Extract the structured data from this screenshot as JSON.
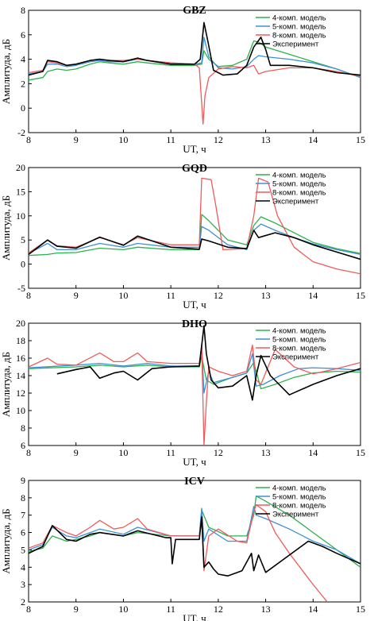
{
  "colors": {
    "m4": "#2bb24c",
    "m5": "#3d8fd6",
    "m8": "#f05a5a",
    "exp": "#000000"
  },
  "chart_data": [
    {
      "type": "line",
      "title": "GBZ",
      "xlabel": "UT, ч",
      "ylabel": "Амплитуда, дБ",
      "xlim": [
        8,
        15
      ],
      "ylim": [
        -2,
        8
      ],
      "xticks": [
        8,
        9,
        10,
        11,
        12,
        13,
        14,
        15
      ],
      "yticks": [
        -2,
        0,
        2,
        4,
        6,
        8
      ],
      "legend_position": "top-right",
      "series": [
        {
          "name": "4-комп. модель",
          "color_key": "m4",
          "x": [
            8,
            8.3,
            8.4,
            8.6,
            8.8,
            9.0,
            9.3,
            9.5,
            9.7,
            10.0,
            10.3,
            10.5,
            11.0,
            11.5,
            11.65,
            11.7,
            11.8,
            12.0,
            12.3,
            12.6,
            12.75,
            12.85,
            13.0,
            13.5,
            14.0,
            14.5,
            15.0
          ],
          "y": [
            2.3,
            2.5,
            3.0,
            3.2,
            3.1,
            3.2,
            3.6,
            3.8,
            3.7,
            3.6,
            3.8,
            3.7,
            3.5,
            3.5,
            3.6,
            4.7,
            4.0,
            3.4,
            3.5,
            4.0,
            5.5,
            5.4,
            5.0,
            4.4,
            3.8,
            3.2,
            2.5
          ]
        },
        {
          "name": "5-комп. модель",
          "color_key": "m5",
          "x": [
            8,
            8.3,
            8.4,
            8.6,
            8.8,
            9.0,
            9.3,
            9.5,
            9.7,
            10.0,
            10.3,
            10.5,
            11.0,
            11.5,
            11.65,
            11.7,
            11.8,
            12.0,
            12.3,
            12.6,
            12.75,
            12.85,
            13.0,
            13.5,
            14.0,
            14.5,
            15.0
          ],
          "y": [
            2.8,
            3.0,
            3.6,
            3.6,
            3.4,
            3.5,
            3.8,
            3.9,
            3.8,
            3.8,
            4.0,
            3.9,
            3.7,
            3.6,
            3.7,
            5.8,
            4.2,
            3.3,
            3.2,
            3.4,
            4.0,
            4.3,
            4.2,
            4.0,
            3.7,
            3.2,
            2.5
          ]
        },
        {
          "name": "8-комп. модель",
          "color_key": "m8",
          "x": [
            8,
            8.3,
            8.4,
            8.6,
            8.8,
            9.0,
            9.3,
            9.5,
            9.7,
            10.0,
            10.3,
            10.5,
            11.0,
            11.5,
            11.6,
            11.68,
            11.72,
            11.8,
            12.0,
            12.3,
            12.6,
            12.75,
            12.85,
            13.0,
            13.5,
            14.0,
            14.5,
            15.0
          ],
          "y": [
            2.9,
            3.1,
            3.8,
            3.7,
            3.5,
            3.6,
            3.9,
            4.0,
            3.9,
            3.9,
            4.0,
            3.9,
            3.7,
            3.6,
            3.3,
            -1.3,
            1.0,
            2.5,
            3.2,
            3.4,
            3.3,
            3.5,
            2.8,
            3.0,
            3.3,
            3.3,
            3.0,
            2.6
          ]
        },
        {
          "name": "Эксперимент",
          "color_key": "exp",
          "x": [
            8,
            8.3,
            8.4,
            8.6,
            8.8,
            9.0,
            9.3,
            9.5,
            9.7,
            10.0,
            10.3,
            10.5,
            11.0,
            11.5,
            11.62,
            11.7,
            11.78,
            11.9,
            12.1,
            12.4,
            12.6,
            12.75,
            12.9,
            13.0,
            13.1,
            13.5,
            14.0,
            14.5,
            15.0
          ],
          "y": [
            2.7,
            3.0,
            3.9,
            3.8,
            3.5,
            3.6,
            3.9,
            4.0,
            3.9,
            3.8,
            4.1,
            3.9,
            3.6,
            3.6,
            4.0,
            7.0,
            5.5,
            3.1,
            2.7,
            2.8,
            3.5,
            5.0,
            5.8,
            4.8,
            3.5,
            3.5,
            3.3,
            2.9,
            2.7
          ]
        }
      ]
    },
    {
      "type": "line",
      "title": "GQD",
      "xlabel": "UT, ч",
      "ylabel": "Амплитуда, дБ",
      "xlim": [
        8,
        15
      ],
      "ylim": [
        -5,
        20
      ],
      "xticks": [
        8,
        9,
        10,
        11,
        12,
        13,
        14,
        15
      ],
      "yticks": [
        -5,
        0,
        5,
        10,
        15,
        20
      ],
      "legend_position": "top-right",
      "series": [
        {
          "name": "4-комп. модель",
          "color_key": "m4",
          "x": [
            8,
            8.4,
            8.6,
            9.0,
            9.5,
            10.0,
            10.3,
            11.0,
            11.6,
            11.65,
            11.8,
            12.2,
            12.6,
            12.75,
            12.9,
            13.2,
            13.6,
            14.0,
            14.5,
            15.0
          ],
          "y": [
            1.8,
            2.0,
            2.3,
            2.4,
            3.3,
            3.0,
            3.5,
            3.0,
            3.0,
            10.3,
            9.0,
            5.0,
            4.0,
            8.0,
            9.8,
            8.5,
            6.5,
            4.5,
            3.2,
            2.2
          ]
        },
        {
          "name": "5-комп. модель",
          "color_key": "m5",
          "x": [
            8,
            8.4,
            8.6,
            9.0,
            9.5,
            10.0,
            10.3,
            11.0,
            11.6,
            11.65,
            11.8,
            12.2,
            12.6,
            12.75,
            12.9,
            13.2,
            13.6,
            14.0,
            14.5,
            15.0
          ],
          "y": [
            2.2,
            4.3,
            3.0,
            3.0,
            4.3,
            3.5,
            4.3,
            3.5,
            3.5,
            7.8,
            7.0,
            4.0,
            3.0,
            7.0,
            8.3,
            7.0,
            5.5,
            4.2,
            3.0,
            2.0
          ]
        },
        {
          "name": "8-комп. модель",
          "color_key": "m8",
          "x": [
            8,
            8.4,
            8.6,
            9.0,
            9.5,
            10.0,
            10.3,
            11.0,
            11.6,
            11.65,
            11.85,
            11.95,
            12.1,
            12.6,
            12.75,
            12.85,
            13.05,
            13.25,
            13.6,
            14.0,
            14.5,
            15.0
          ],
          "y": [
            2.3,
            5.0,
            3.8,
            3.5,
            5.5,
            4.0,
            5.5,
            4.0,
            4.0,
            17.8,
            17.5,
            12.0,
            3.0,
            3.2,
            10.0,
            17.8,
            17.0,
            10.0,
            3.5,
            0.5,
            -1.0,
            -2.0
          ]
        },
        {
          "name": "Эксперимент",
          "color_key": "exp",
          "x": [
            8,
            8.4,
            8.6,
            9.0,
            9.5,
            10.0,
            10.3,
            11.0,
            11.6,
            11.65,
            11.8,
            12.2,
            12.6,
            12.75,
            12.85,
            13.2,
            13.6,
            14.0,
            14.5,
            15.0
          ],
          "y": [
            2.0,
            5.0,
            3.7,
            3.3,
            5.6,
            3.9,
            5.8,
            3.5,
            3.1,
            5.2,
            4.8,
            3.5,
            3.2,
            7.0,
            5.5,
            6.5,
            5.5,
            4.0,
            2.5,
            1.0
          ]
        }
      ]
    },
    {
      "type": "line",
      "title": "DHO",
      "xlabel": "UT, ч",
      "ylabel": "Амплитуда, дБ",
      "xlim": [
        8,
        15
      ],
      "ylim": [
        6,
        20
      ],
      "xticks": [
        8,
        9,
        10,
        11,
        12,
        13,
        14,
        15
      ],
      "yticks": [
        6,
        8,
        10,
        12,
        14,
        16,
        18,
        20
      ],
      "legend_position": "top-right",
      "series": [
        {
          "name": "4-комп. модель",
          "color_key": "m4",
          "x": [
            8,
            9.0,
            9.5,
            10.0,
            10.5,
            11.0,
            11.6,
            11.65,
            11.75,
            11.9,
            12.3,
            12.6,
            12.75,
            12.9,
            13.2,
            13.6,
            14.0,
            14.5,
            15.0
          ],
          "y": [
            14.8,
            15.0,
            15.2,
            15.0,
            15.2,
            15.0,
            15.0,
            16.2,
            13.5,
            13.0,
            13.8,
            14.3,
            15.5,
            12.5,
            13.0,
            13.8,
            14.3,
            14.5,
            14.4
          ]
        },
        {
          "name": "5-комп. модель",
          "color_key": "m5",
          "x": [
            8,
            9.0,
            9.5,
            10.0,
            10.5,
            11.0,
            11.6,
            11.65,
            11.7,
            11.8,
            11.9,
            12.3,
            12.6,
            12.72,
            12.8,
            12.95,
            13.3,
            13.7,
            14.0,
            14.5,
            15.0
          ],
          "y": [
            14.9,
            15.2,
            15.4,
            15.1,
            15.4,
            15.1,
            15.1,
            17.5,
            12.0,
            14.5,
            13.2,
            13.8,
            14.3,
            16.5,
            12.8,
            13.0,
            14.0,
            14.8,
            14.9,
            14.8,
            14.6
          ]
        },
        {
          "name": "8-комп. модель",
          "color_key": "m8",
          "x": [
            8,
            8.4,
            8.6,
            9.0,
            9.5,
            9.8,
            10.0,
            10.3,
            10.5,
            11.0,
            11.6,
            11.65,
            11.7,
            11.75,
            11.8,
            12.0,
            12.3,
            12.6,
            12.72,
            12.8,
            12.9,
            13.2,
            13.6,
            14.0,
            14.5,
            15.0
          ],
          "y": [
            15.0,
            16.0,
            15.3,
            15.2,
            16.6,
            15.6,
            15.6,
            16.6,
            15.6,
            15.4,
            15.4,
            17.5,
            6.0,
            11.0,
            15.0,
            14.5,
            14.0,
            14.5,
            17.5,
            13.5,
            13.0,
            17.0,
            15.0,
            14.2,
            14.8,
            15.5
          ]
        },
        {
          "name": "Эксперимент",
          "color_key": "exp",
          "x": [
            8.6,
            9.0,
            9.3,
            9.5,
            9.8,
            10.0,
            10.3,
            10.6,
            11.0,
            11.6,
            11.7,
            11.75,
            11.85,
            12.0,
            12.3,
            12.6,
            12.72,
            12.8,
            12.9,
            13.1,
            13.5,
            14.0,
            14.5,
            15.0
          ],
          "y": [
            14.2,
            14.7,
            15.0,
            13.7,
            14.3,
            14.5,
            13.5,
            14.8,
            15.0,
            15.1,
            19.7,
            16.5,
            13.5,
            12.6,
            12.8,
            14.0,
            11.2,
            14.0,
            16.3,
            14.0,
            11.8,
            13.0,
            14.0,
            14.8
          ]
        }
      ]
    },
    {
      "type": "line",
      "title": "ICV",
      "xlabel": "UT, ч",
      "ylabel": "Амплитуда, дБ",
      "xlim": [
        8,
        15
      ],
      "ylim": [
        2,
        9
      ],
      "xticks": [
        8,
        9,
        10,
        11,
        12,
        13,
        14,
        15
      ],
      "yticks": [
        2,
        3,
        4,
        5,
        6,
        7,
        8,
        9
      ],
      "legend_position": "top-right",
      "series": [
        {
          "name": "4-комп. модель",
          "color_key": "m4",
          "x": [
            8,
            8.3,
            8.5,
            8.8,
            9.0,
            9.3,
            9.5,
            10.0,
            10.3,
            11.0,
            11.6,
            11.65,
            11.8,
            12.2,
            12.6,
            12.75,
            12.8,
            13.0,
            13.5,
            14.0,
            14.5,
            15.0
          ],
          "y": [
            4.9,
            5.1,
            5.8,
            5.5,
            5.6,
            5.8,
            6.0,
            5.8,
            6.0,
            5.8,
            5.8,
            7.3,
            6.3,
            5.8,
            5.8,
            7.0,
            8.1,
            7.8,
            7.0,
            6.0,
            5.0,
            4.0
          ]
        },
        {
          "name": "5-комп. модель",
          "color_key": "m5",
          "x": [
            8,
            8.3,
            8.5,
            8.8,
            9.0,
            9.3,
            9.5,
            10.0,
            10.3,
            11.0,
            11.6,
            11.65,
            11.7,
            11.8,
            12.2,
            12.6,
            12.75,
            12.8,
            13.0,
            13.5,
            14.0,
            14.5,
            15.0
          ],
          "y": [
            5.0,
            5.3,
            6.3,
            5.8,
            5.7,
            6.0,
            6.2,
            5.9,
            6.3,
            5.8,
            5.8,
            7.4,
            5.5,
            6.2,
            5.5,
            5.5,
            7.5,
            7.0,
            6.8,
            6.2,
            5.5,
            5.0,
            4.2
          ]
        },
        {
          "name": "8-комп. модель",
          "color_key": "m8",
          "x": [
            8,
            8.3,
            8.5,
            8.8,
            9.0,
            9.3,
            9.5,
            9.8,
            10.0,
            10.3,
            10.5,
            11.0,
            11.6,
            11.65,
            11.7,
            11.8,
            12.0,
            12.4,
            12.6,
            12.75,
            12.8,
            13.0,
            13.2,
            13.5,
            14.0,
            14.3
          ],
          "y": [
            5.1,
            5.4,
            6.4,
            6.0,
            5.8,
            6.3,
            6.7,
            6.2,
            6.3,
            6.8,
            6.2,
            5.8,
            5.8,
            6.8,
            3.8,
            5.8,
            6.2,
            5.5,
            5.4,
            7.2,
            7.6,
            7.2,
            6.0,
            4.8,
            3.0,
            2.0
          ]
        },
        {
          "name": "Эксперимент",
          "color_key": "exp",
          "x": [
            8,
            8.3,
            8.5,
            8.8,
            9.0,
            9.3,
            9.5,
            10.0,
            10.3,
            10.9,
            11.0,
            11.03,
            11.1,
            11.6,
            11.65,
            11.7,
            11.8,
            11.9,
            12.0,
            12.2,
            12.5,
            12.7,
            12.75,
            12.85,
            13.0,
            13.5,
            13.9,
            14.2,
            14.5,
            15.0
          ],
          "y": [
            4.8,
            5.2,
            6.4,
            5.6,
            5.5,
            5.9,
            6.0,
            5.8,
            6.1,
            5.7,
            5.7,
            4.2,
            5.6,
            5.6,
            6.9,
            4.0,
            4.3,
            3.9,
            3.6,
            3.5,
            3.8,
            4.8,
            3.8,
            4.7,
            3.7,
            4.7,
            5.5,
            5.2,
            4.8,
            4.2
          ]
        }
      ]
    }
  ]
}
